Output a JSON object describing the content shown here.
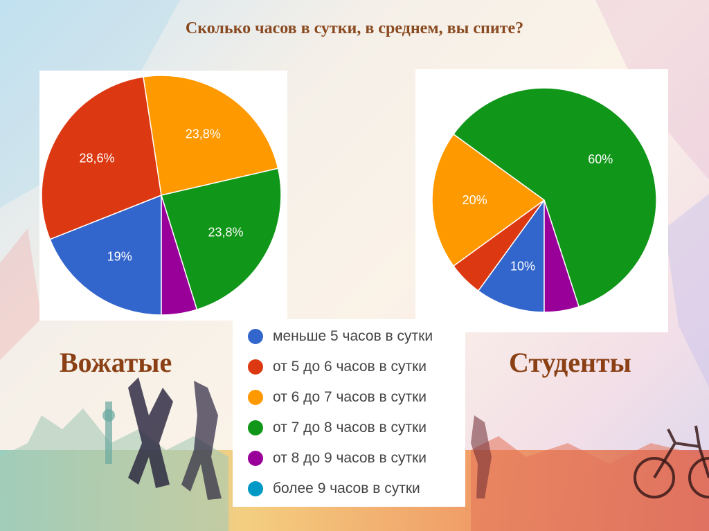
{
  "title": "Сколько часов в сутки, в среднем, вы спите?",
  "colors": {
    "less5": "#3366cc",
    "5to6": "#dc3912",
    "6to7": "#ff9900",
    "7to8": "#109618",
    "8to9": "#990099",
    "more9": "#0099c6",
    "title_text": "#8a4a21",
    "group_label_text": "#8a4014"
  },
  "legend": [
    {
      "label": "меньше 5 часов в сутки",
      "color": "#3366cc"
    },
    {
      "label": "от 5 до 6 часов в сутки",
      "color": "#dc3912"
    },
    {
      "label": "от 6 до 7 часов в сутки",
      "color": "#ff9900"
    },
    {
      "label": "от 7 до 8 часов в сутки",
      "color": "#109618"
    },
    {
      "label": "от 8 до 9 часов в сутки",
      "color": "#990099"
    },
    {
      "label": "более 9 часов в сутки",
      "color": "#0099c6"
    }
  ],
  "chart_data": [
    {
      "type": "pie",
      "title": "Вожатые",
      "categories": [
        "меньше 5 часов в сутки",
        "от 5 до 6 часов в сутки",
        "от 6 до 7 часов в сутки",
        "от 7 до 8 часов в сутки",
        "от 8 до 9 часов в сутки",
        "более 9 часов в сутки"
      ],
      "values": [
        19,
        28.6,
        23.8,
        23.8,
        4.8,
        0
      ],
      "data_labels": [
        "19%",
        "28,6%",
        "23,8%",
        "23,8%",
        "",
        ""
      ],
      "colors": [
        "#3366cc",
        "#dc3912",
        "#ff9900",
        "#109618",
        "#990099",
        "#0099c6"
      ]
    },
    {
      "type": "pie",
      "title": "Студенты",
      "categories": [
        "меньше 5 часов в сутки",
        "от 5 до 6 часов в сутки",
        "от 6 до 7 часов в сутки",
        "от 7 до 8 часов в сутки",
        "от 8 до 9 часов в сутки",
        "более 9 часов в сутки"
      ],
      "values": [
        10,
        5,
        20,
        60,
        5,
        0
      ],
      "data_labels": [
        "10%",
        "",
        "20%",
        "60%",
        "",
        ""
      ],
      "colors": [
        "#3366cc",
        "#dc3912",
        "#ff9900",
        "#109618",
        "#990099",
        "#0099c6"
      ]
    }
  ]
}
